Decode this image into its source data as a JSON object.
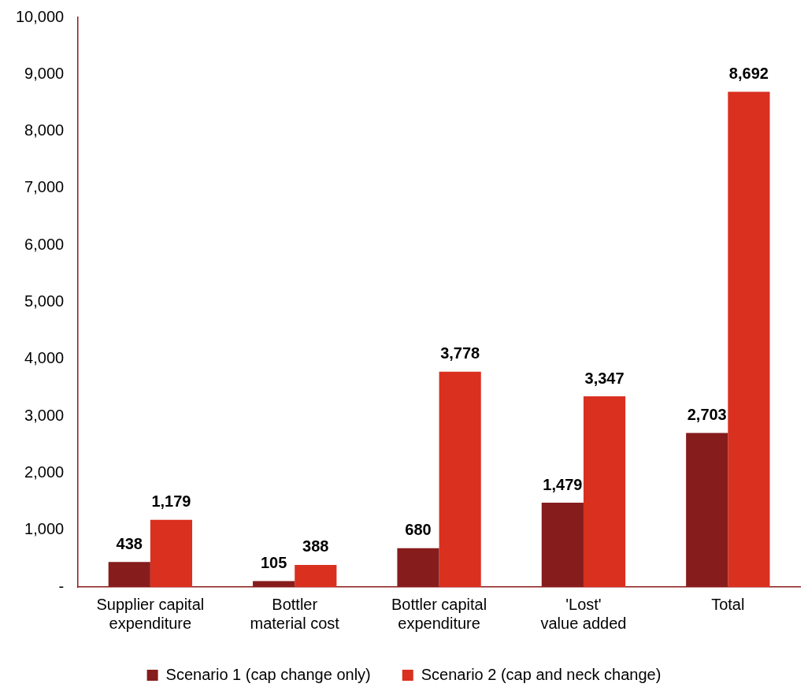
{
  "chart_data": {
    "type": "bar",
    "categories": [
      "Supplier capital expenditure",
      "Bottler material cost",
      "Bottler capital expenditure",
      "'Lost' value added",
      "Total"
    ],
    "series": [
      {
        "name": "Scenario 1 (cap change only)",
        "color": "#861c1c",
        "values": [
          438,
          105,
          680,
          1479,
          2703
        ],
        "value_labels": [
          "438",
          "105",
          "680",
          "1,479",
          "2,703"
        ]
      },
      {
        "name": "Scenario 2 (cap and neck change)",
        "color": "#d93020",
        "values": [
          1179,
          388,
          3778,
          3347,
          8692
        ],
        "value_labels": [
          "1,179",
          "388",
          "3,778",
          "3,347",
          "8,692"
        ]
      }
    ],
    "ylim": [
      0,
      10000
    ],
    "yticks": [
      {
        "value": 0,
        "label": "-"
      },
      {
        "value": 1000,
        "label": "1,000"
      },
      {
        "value": 2000,
        "label": "2,000"
      },
      {
        "value": 3000,
        "label": "3,000"
      },
      {
        "value": 4000,
        "label": "4,000"
      },
      {
        "value": 5000,
        "label": "5,000"
      },
      {
        "value": 6000,
        "label": "6,000"
      },
      {
        "value": 7000,
        "label": "7,000"
      },
      {
        "value": 8000,
        "label": "8,000"
      },
      {
        "value": 9000,
        "label": "9,000"
      },
      {
        "value": 10000,
        "label": "10,000"
      }
    ],
    "grid": false,
    "legend": "bottom"
  }
}
